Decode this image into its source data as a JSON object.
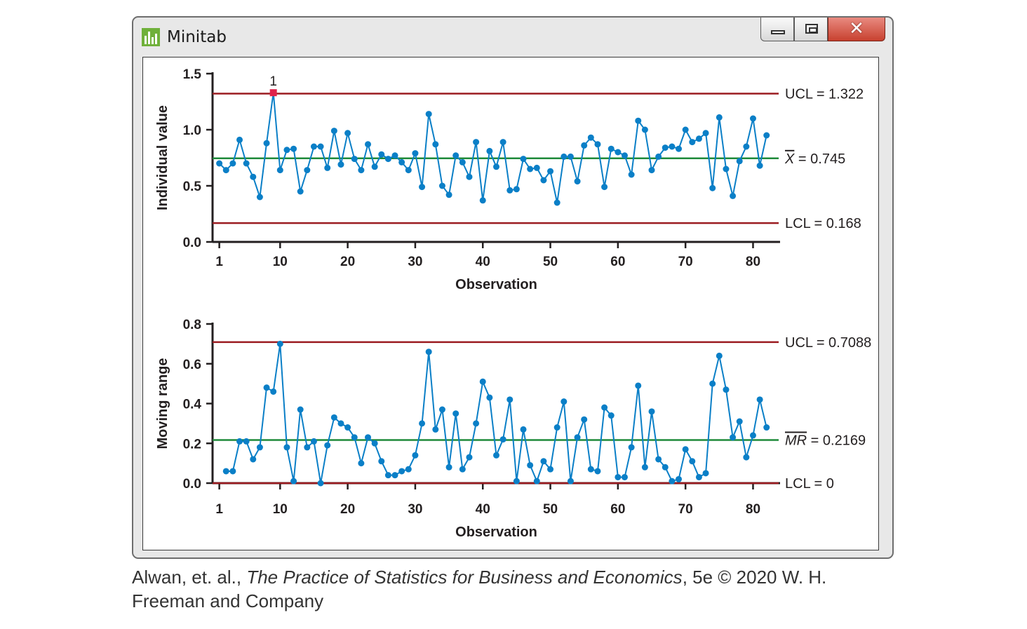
{
  "window": {
    "title": "Minitab",
    "icon": "minitab-bar-chart-icon",
    "controls": {
      "minimize": "minimize-icon",
      "maximize": "maximize-icon",
      "close": "close-icon"
    }
  },
  "caption": {
    "pre": "Alwan, et. al., ",
    "italic": "The Practice of Statistics for Business and Economics",
    "post": ", 5e © 2020 W. H. Freeman and Company"
  },
  "colors": {
    "series": "#0a7fc7",
    "limit": "#9b1b20",
    "center": "#1f8a3a",
    "flag": "#e0224b",
    "axis": "#231f20"
  },
  "chart_data": [
    {
      "type": "line",
      "name": "I chart",
      "xlabel": "Observation",
      "ylabel": "Individual value",
      "xlim": [
        0,
        84
      ],
      "ylim": [
        0,
        1.5
      ],
      "xticks": [
        1,
        10,
        20,
        30,
        40,
        50,
        60,
        70,
        80
      ],
      "yticks": [
        0.0,
        0.5,
        1.0,
        1.5
      ],
      "ytick_labels": [
        "0.0",
        "0.5",
        "1.0",
        "1.5"
      ],
      "reference_lines": [
        {
          "kind": "ucl",
          "y": 1.322,
          "label": "UCL = 1.322"
        },
        {
          "kind": "center",
          "y": 0.745,
          "label_symbol": "X",
          "label_value": " = 0.745"
        },
        {
          "kind": "lcl",
          "y": 0.168,
          "label": "LCL = 0.168"
        }
      ],
      "flagged": [
        {
          "x": 9,
          "label": "1"
        }
      ],
      "x": [
        1,
        2,
        3,
        4,
        5,
        6,
        7,
        8,
        9,
        10,
        11,
        12,
        13,
        14,
        15,
        16,
        17,
        18,
        19,
        20,
        21,
        22,
        23,
        24,
        25,
        26,
        27,
        28,
        29,
        30,
        31,
        32,
        33,
        34,
        35,
        36,
        37,
        38,
        39,
        40,
        41,
        42,
        43,
        44,
        45,
        46,
        47,
        48,
        49,
        50,
        51,
        52,
        53,
        54,
        55,
        56,
        57,
        58,
        59,
        60,
        61,
        62,
        63,
        64,
        65,
        66,
        67,
        68,
        69,
        70,
        71,
        72,
        73,
        74,
        75,
        76,
        77,
        78,
        79,
        80,
        81,
        82
      ],
      "values": [
        0.7,
        0.64,
        0.7,
        0.91,
        0.7,
        0.58,
        0.4,
        0.88,
        1.33,
        0.64,
        0.82,
        0.83,
        0.45,
        0.64,
        0.85,
        0.85,
        0.66,
        0.99,
        0.69,
        0.97,
        0.74,
        0.64,
        0.87,
        0.67,
        0.78,
        0.74,
        0.77,
        0.71,
        0.64,
        0.79,
        0.49,
        1.14,
        0.87,
        0.5,
        0.42,
        0.77,
        0.71,
        0.58,
        0.89,
        0.37,
        0.81,
        0.67,
        0.89,
        0.46,
        0.47,
        0.74,
        0.65,
        0.66,
        0.55,
        0.63,
        0.35,
        0.76,
        0.76,
        0.54,
        0.86,
        0.93,
        0.87,
        0.49,
        0.83,
        0.8,
        0.77,
        0.6,
        1.08,
        1.0,
        0.64,
        0.76,
        0.84,
        0.85,
        0.83,
        1.0,
        0.89,
        0.92,
        0.97,
        0.48,
        1.11,
        0.65,
        0.41,
        0.72,
        0.85,
        1.1,
        0.68,
        0.95
      ]
    },
    {
      "type": "line",
      "name": "Moving range chart",
      "xlabel": "Observation",
      "ylabel": "Moving range",
      "xlim": [
        0,
        84
      ],
      "ylim": [
        0,
        0.8
      ],
      "xticks": [
        1,
        10,
        20,
        30,
        40,
        50,
        60,
        70,
        80
      ],
      "yticks": [
        0.0,
        0.2,
        0.4,
        0.6,
        0.8
      ],
      "ytick_labels": [
        "0.0",
        "0.2",
        "0.4",
        "0.6",
        "0.8"
      ],
      "reference_lines": [
        {
          "kind": "ucl",
          "y": 0.7088,
          "label": "UCL = 0.7088"
        },
        {
          "kind": "center",
          "y": 0.2169,
          "label_symbol": "MR",
          "label_value": " = 0.2169"
        },
        {
          "kind": "lcl",
          "y": 0.0,
          "label": "LCL = 0"
        }
      ],
      "x": [
        2,
        3,
        4,
        5,
        6,
        7,
        8,
        9,
        10,
        11,
        12,
        13,
        14,
        15,
        16,
        17,
        18,
        19,
        20,
        21,
        22,
        23,
        24,
        25,
        26,
        27,
        28,
        29,
        30,
        31,
        32,
        33,
        34,
        35,
        36,
        37,
        38,
        39,
        40,
        41,
        42,
        43,
        44,
        45,
        46,
        47,
        48,
        49,
        50,
        51,
        52,
        53,
        54,
        55,
        56,
        57,
        58,
        59,
        60,
        61,
        62,
        63,
        64,
        65,
        66,
        67,
        68,
        69,
        70,
        71,
        72,
        73,
        74,
        75,
        76,
        77,
        78,
        79,
        80,
        81,
        82
      ],
      "values": [
        0.06,
        0.06,
        0.21,
        0.21,
        0.12,
        0.18,
        0.48,
        0.46,
        0.7,
        0.18,
        0.01,
        0.37,
        0.18,
        0.21,
        0.0,
        0.19,
        0.33,
        0.3,
        0.28,
        0.23,
        0.1,
        0.23,
        0.2,
        0.11,
        0.04,
        0.04,
        0.06,
        0.07,
        0.14,
        0.3,
        0.66,
        0.27,
        0.37,
        0.08,
        0.35,
        0.07,
        0.13,
        0.3,
        0.51,
        0.43,
        0.14,
        0.22,
        0.42,
        0.01,
        0.27,
        0.09,
        0.01,
        0.11,
        0.07,
        0.28,
        0.41,
        0.01,
        0.23,
        0.32,
        0.07,
        0.06,
        0.38,
        0.34,
        0.03,
        0.03,
        0.18,
        0.49,
        0.08,
        0.36,
        0.12,
        0.08,
        0.01,
        0.02,
        0.17,
        0.11,
        0.03,
        0.05,
        0.5,
        0.64,
        0.47,
        0.23,
        0.31,
        0.13,
        0.24,
        0.42,
        0.28
      ]
    }
  ]
}
